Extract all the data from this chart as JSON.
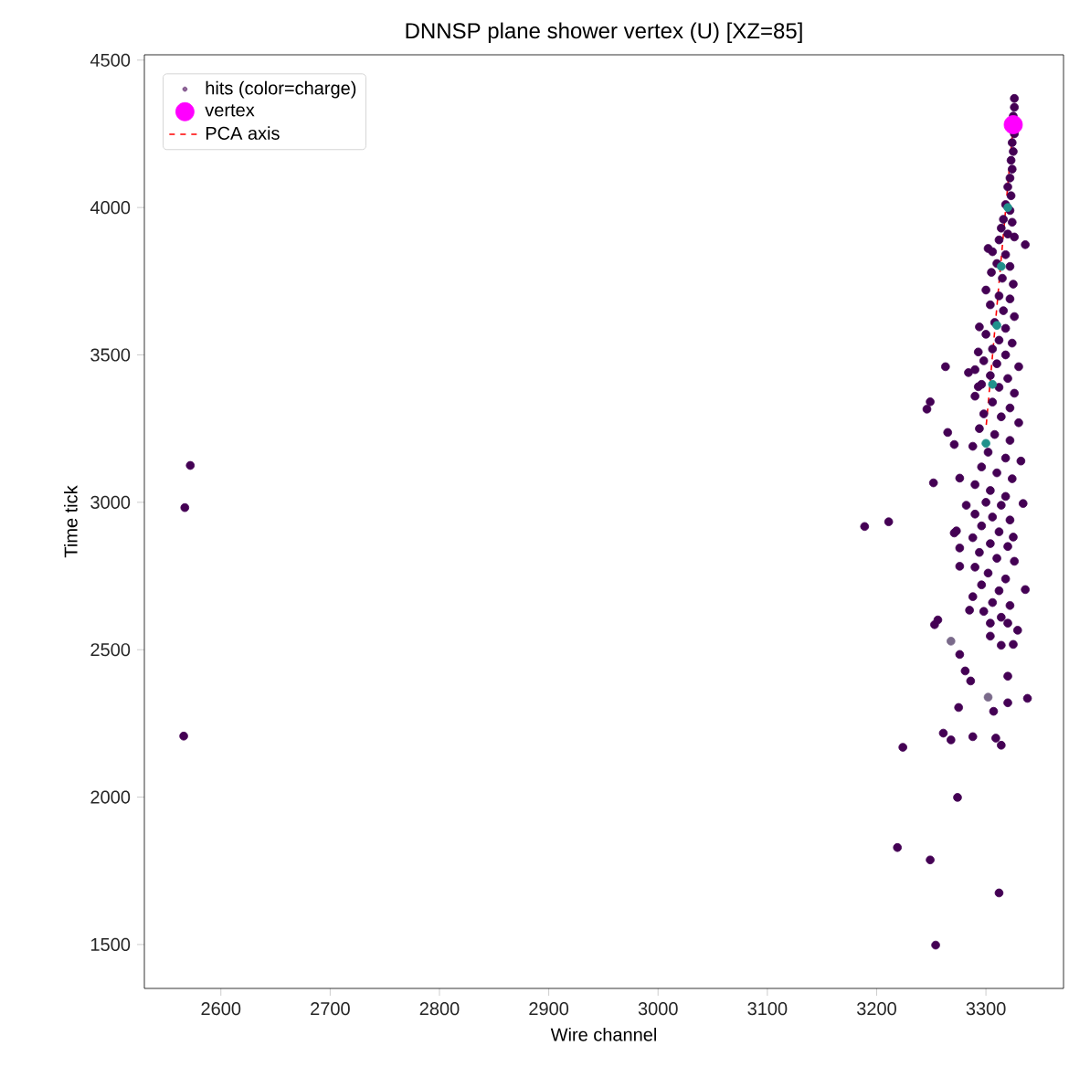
{
  "chart_data": {
    "type": "scatter",
    "title": "DNNSP plane shower vertex (U) [XZ=85]",
    "xlabel": "Wire channel",
    "ylabel": "Time tick",
    "xlim": [
      2530,
      3371
    ],
    "ylim": [
      1351,
      4518
    ],
    "xticks": [
      2600,
      2700,
      2800,
      2900,
      3000,
      3100,
      3200,
      3300
    ],
    "yticks": [
      1500,
      2000,
      2500,
      3000,
      3500,
      4000,
      4500
    ],
    "legend": "top left",
    "grid": false,
    "series": [
      {
        "name": "hits (color=charge)",
        "marker": "circle",
        "color": "#440154",
        "x": [
          2572,
          2567,
          2566,
          3189,
          3211,
          3224,
          3219,
          3249,
          3254,
          3312,
          3274,
          3261,
          3268,
          3288,
          3309,
          3314,
          3275,
          3307,
          3302,
          3320,
          3320,
          3338,
          3281,
          3286,
          3276,
          3268,
          3253,
          3256,
          3285,
          3304,
          3314,
          3325,
          3329,
          3336,
          3271,
          3276,
          3276,
          3325,
          3302,
          3336,
          3294,
          3263,
          3284,
          3293,
          3293,
          3249,
          3246,
          3265,
          3271,
          3252,
          3276,
          3334,
          3282,
          3273,
          3326,
          3326,
          3325,
          3326,
          3324,
          3325,
          3323,
          3324,
          3322,
          3320,
          3323,
          3318,
          3322,
          3316,
          3324,
          3314,
          3320,
          3326,
          3312,
          3306,
          3318,
          3310,
          3322,
          3305,
          3315,
          3325,
          3300,
          3312,
          3322,
          3304,
          3316,
          3326,
          3308,
          3318,
          3300,
          3312,
          3324,
          3306,
          3318,
          3298,
          3310,
          3330,
          3290,
          3304,
          3320,
          3296,
          3312,
          3326,
          3290,
          3306,
          3322,
          3298,
          3314,
          3330,
          3294,
          3308,
          3322,
          3288,
          3302,
          3318,
          3332,
          3296,
          3310,
          3324,
          3290,
          3304,
          3318,
          3300,
          3314,
          3290,
          3306,
          3322,
          3296,
          3312,
          3288,
          3304,
          3320,
          3294,
          3310,
          3326,
          3290,
          3302,
          3318,
          3296,
          3312,
          3288,
          3306,
          3322,
          3298,
          3314,
          3304,
          3320,
          3320,
          3314,
          3310,
          3306,
          3300
        ],
        "values": [
          3125,
          2982,
          2207,
          2918,
          2934,
          2169,
          1829,
          1787,
          1498,
          1675,
          1999,
          2217,
          2194,
          2205,
          2200,
          2176,
          2304,
          2291,
          2339,
          2410,
          2320,
          2335,
          2428,
          2394,
          2484,
          2529,
          2585,
          2601,
          2634,
          2546,
          2515,
          2518,
          2566,
          2704,
          2896,
          2845,
          2783,
          2882,
          3861,
          3874,
          3595,
          3460,
          3440,
          3510,
          3392,
          3341,
          3316,
          3237,
          3196,
          3066,
          3082,
          2996,
          2990,
          2903,
          4370,
          4340,
          4310,
          4250,
          4220,
          4190,
          4160,
          4130,
          4100,
          4070,
          4040,
          4010,
          3990,
          3960,
          3950,
          3930,
          3910,
          3900,
          3890,
          3850,
          3840,
          3810,
          3800,
          3780,
          3760,
          3740,
          3720,
          3700,
          3690,
          3670,
          3650,
          3630,
          3610,
          3590,
          3570,
          3550,
          3540,
          3520,
          3500,
          3480,
          3470,
          3460,
          3450,
          3430,
          3420,
          3400,
          3390,
          3370,
          3360,
          3340,
          3320,
          3300,
          3290,
          3270,
          3250,
          3230,
          3210,
          3190,
          3170,
          3150,
          3140,
          3120,
          3100,
          3080,
          3060,
          3040,
          3020,
          3000,
          2990,
          2960,
          2950,
          2940,
          2920,
          2900,
          2880,
          2860,
          2850,
          2830,
          2810,
          2800,
          2780,
          2760,
          2740,
          2720,
          2700,
          2680,
          2660,
          2650,
          2630,
          2610,
          2590,
          2590,
          4000,
          3800,
          3600,
          3400,
          3200
        ],
        "colors": [
          "#440154",
          "#440154",
          "#440154",
          "#440154",
          "#440154",
          "#440154",
          "#440154",
          "#440154",
          "#440154",
          "#440154",
          "#440154",
          "#440154",
          "#440154",
          "#440154",
          "#440154",
          "#440154",
          "#440154",
          "#440154",
          "#7a6a8a",
          "#440154",
          "#440154",
          "#440154",
          "#440154",
          "#440154",
          "#440154",
          "#7a6a8a",
          "#440154",
          "#440154",
          "#440154",
          "#440154",
          "#440154",
          "#440154",
          "#440154",
          "#440154",
          "#440154",
          "#440154",
          "#440154",
          "#440154",
          "#440154",
          "#440154",
          "#440154",
          "#440154",
          "#440154",
          "#440154",
          "#440154",
          "#440154",
          "#440154",
          "#440154",
          "#440154",
          "#440154",
          "#440154",
          "#440154",
          "#440154",
          "#440154",
          "#440154",
          "#440154",
          "#440154",
          "#440154",
          "#440154",
          "#440154",
          "#440154",
          "#440154",
          "#440154",
          "#440154",
          "#440154",
          "#440154",
          "#440154",
          "#440154",
          "#440154",
          "#440154",
          "#440154",
          "#440154",
          "#440154",
          "#440154",
          "#440154",
          "#440154",
          "#440154",
          "#440154",
          "#440154",
          "#440154",
          "#440154",
          "#440154",
          "#440154",
          "#440154",
          "#440154",
          "#440154",
          "#440154",
          "#440154",
          "#440154",
          "#440154",
          "#440154",
          "#440154",
          "#440154",
          "#440154",
          "#440154",
          "#440154",
          "#440154",
          "#440154",
          "#440154",
          "#440154",
          "#440154",
          "#440154",
          "#440154",
          "#440154",
          "#440154",
          "#440154",
          "#440154",
          "#440154",
          "#440154",
          "#440154",
          "#440154",
          "#440154",
          "#440154",
          "#440154",
          "#440154",
          "#440154",
          "#440154",
          "#440154",
          "#440154",
          "#440154",
          "#440154",
          "#440154",
          "#440154",
          "#440154",
          "#440154",
          "#440154",
          "#440154",
          "#440154",
          "#440154",
          "#440154",
          "#440154",
          "#440154",
          "#440154",
          "#440154",
          "#440154",
          "#440154",
          "#440154",
          "#440154",
          "#440154",
          "#440154",
          "#440154",
          "#440154",
          "#440154",
          "#440154",
          "#440154",
          "#440154",
          "#21918c",
          "#21918c",
          "#21918c",
          "#21918c",
          "#21918c"
        ]
      },
      {
        "name": "vertex",
        "marker": "circle",
        "color": "#ff00ff",
        "x": [
          3325
        ],
        "values": [
          4281
        ]
      },
      {
        "name": "PCA axis",
        "type": "line",
        "line_style": "dashed",
        "marker": "none",
        "color": "#ff0000",
        "x": [
          3325,
          3300
        ],
        "values": [
          4281,
          3250
        ]
      }
    ]
  }
}
